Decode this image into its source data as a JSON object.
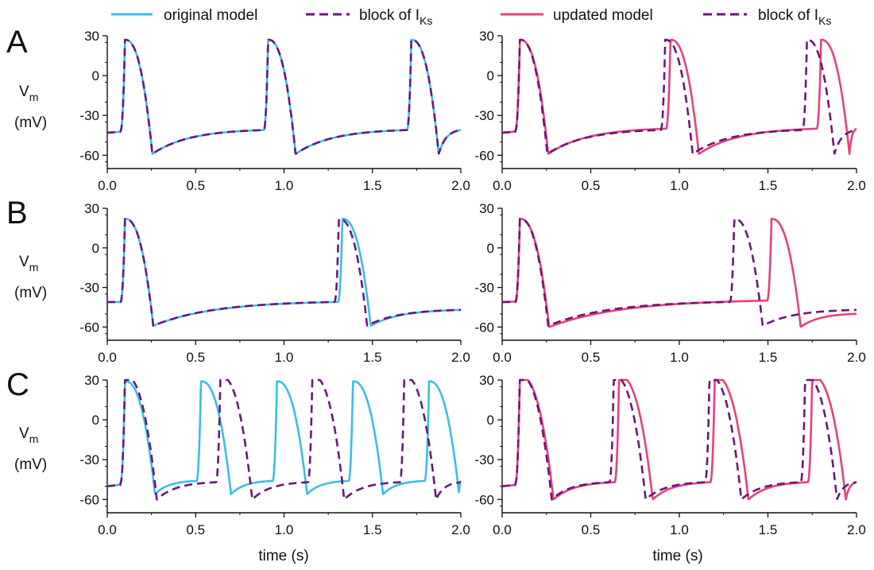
{
  "figure": {
    "xlabel": "time (s)",
    "ylabel_symbol": "V",
    "ylabel_subscript": "m",
    "ylabel_unit": "(mV)"
  },
  "legend_left": {
    "solid_label": "original model",
    "dashed_label_main": "block of I",
    "dashed_label_sub": "Ks"
  },
  "legend_right": {
    "solid_label": "updated model",
    "dashed_label_main": "block of I",
    "dashed_label_sub": "Ks"
  },
  "colors": {
    "original": "#3bbde8",
    "updated": "#e8407f",
    "block": "#6b1778",
    "axis": "#111111"
  },
  "chart_data": [
    {
      "type": "line",
      "panel": "A",
      "column": "left",
      "xlim": [
        0,
        2
      ],
      "ylim": [
        -70,
        30
      ],
      "xticks": [
        "0.0",
        "0.5",
        "1.0",
        "1.5",
        "2.0"
      ],
      "yticks": [
        "30",
        "0",
        "-30",
        "-60"
      ],
      "series": [
        {
          "name": "original model",
          "style": "solid",
          "color": "original",
          "spikes": [
            0.1,
            0.91,
            1.72
          ],
          "peak": 27,
          "apd": 0.155,
          "nadir": -59,
          "plateau_end": -41,
          "start": -43
        },
        {
          "name": "block of IKs",
          "style": "dashed",
          "color": "block",
          "spikes": [
            0.1,
            0.91,
            1.72
          ],
          "peak": 27,
          "apd": 0.155,
          "nadir": -59,
          "plateau_end": -41,
          "start": -43
        }
      ]
    },
    {
      "type": "line",
      "panel": "A",
      "column": "right",
      "xlim": [
        0,
        2
      ],
      "ylim": [
        -70,
        30
      ],
      "xticks": [
        "0.0",
        "0.5",
        "1.0",
        "1.5",
        "2.0"
      ],
      "yticks": [
        "30",
        "0",
        "-30",
        "-60"
      ],
      "series": [
        {
          "name": "updated model",
          "style": "solid",
          "color": "updated",
          "spikes": [
            0.1,
            0.95,
            1.8
          ],
          "peak": 27,
          "apd": 0.16,
          "nadir": -59,
          "plateau_end": -40,
          "start": -43
        },
        {
          "name": "block of IKs",
          "style": "dashed",
          "color": "block",
          "spikes": [
            0.1,
            0.92,
            1.72
          ],
          "peak": 27,
          "apd": 0.155,
          "nadir": -59,
          "plateau_end": -41,
          "start": -43
        }
      ]
    },
    {
      "type": "line",
      "panel": "B",
      "column": "left",
      "xlim": [
        0,
        2
      ],
      "ylim": [
        -70,
        30
      ],
      "xticks": [
        "0.0",
        "0.5",
        "1.0",
        "1.5",
        "2.0"
      ],
      "yticks": [
        "30",
        "0",
        "-30",
        "-60"
      ],
      "series": [
        {
          "name": "original model",
          "style": "solid",
          "color": "original",
          "spikes": [
            0.1,
            1.33
          ],
          "peak": 22,
          "apd": 0.16,
          "nadir": -59,
          "plateau_end": -41,
          "start": -41,
          "tail_end": -47
        },
        {
          "name": "block of IKs",
          "style": "dashed",
          "color": "block",
          "spikes": [
            0.1,
            1.31
          ],
          "peak": 22,
          "apd": 0.16,
          "nadir": -59,
          "plateau_end": -41,
          "start": -41,
          "tail_end": -47
        }
      ]
    },
    {
      "type": "line",
      "panel": "B",
      "column": "right",
      "xlim": [
        0,
        2
      ],
      "ylim": [
        -70,
        30
      ],
      "xticks": [
        "0.0",
        "0.5",
        "1.0",
        "1.5",
        "2.0"
      ],
      "yticks": [
        "30",
        "0",
        "-30",
        "-60"
      ],
      "series": [
        {
          "name": "updated model",
          "style": "solid",
          "color": "updated",
          "spikes": [
            0.1,
            1.52
          ],
          "peak": 22,
          "apd": 0.165,
          "nadir": -60,
          "plateau_end": -40,
          "start": -41,
          "tail_end": -50
        },
        {
          "name": "block of IKs",
          "style": "dashed",
          "color": "block",
          "spikes": [
            0.1,
            1.31
          ],
          "peak": 22,
          "apd": 0.16,
          "nadir": -59,
          "plateau_end": -41,
          "start": -41,
          "tail_end": -47
        }
      ]
    },
    {
      "type": "line",
      "panel": "C",
      "column": "left",
      "xlim": [
        0,
        2
      ],
      "ylim": [
        -70,
        30
      ],
      "xticks": [
        "0.0",
        "0.5",
        "1.0",
        "1.5",
        "2.0"
      ],
      "yticks": [
        "30",
        "0",
        "-30",
        "-60"
      ],
      "series": [
        {
          "name": "original model",
          "style": "solid",
          "color": "original",
          "spikes": [
            0.1,
            0.53,
            0.96,
            1.39,
            1.82
          ],
          "peak": 29,
          "apd": 0.17,
          "nadir": -56,
          "plateau_end": -46,
          "start": -50
        },
        {
          "name": "block of IKs",
          "style": "dashed",
          "color": "block",
          "spikes": [
            0.1,
            0.64,
            1.16,
            1.68
          ],
          "peak": 33,
          "apd": 0.18,
          "nadir": -60,
          "plateau_end": -47,
          "start": -50
        }
      ]
    },
    {
      "type": "line",
      "panel": "C",
      "column": "right",
      "xlim": [
        0,
        2
      ],
      "ylim": [
        -70,
        30
      ],
      "xticks": [
        "0.0",
        "0.5",
        "1.0",
        "1.5",
        "2.0"
      ],
      "yticks": [
        "30",
        "0",
        "-30",
        "-60"
      ],
      "series": [
        {
          "name": "updated model",
          "style": "solid",
          "color": "updated",
          "spikes": [
            0.1,
            0.66,
            1.2,
            1.75
          ],
          "peak": 33,
          "apd": 0.19,
          "nadir": -60,
          "plateau_end": -47,
          "start": -50
        },
        {
          "name": "block of IKs",
          "style": "dashed",
          "color": "block",
          "spikes": [
            0.1,
            0.63,
            1.17,
            1.71
          ],
          "peak": 33,
          "apd": 0.18,
          "nadir": -60,
          "plateau_end": -47,
          "start": -50
        }
      ]
    }
  ],
  "panel_letters": [
    "A",
    "B",
    "C"
  ]
}
